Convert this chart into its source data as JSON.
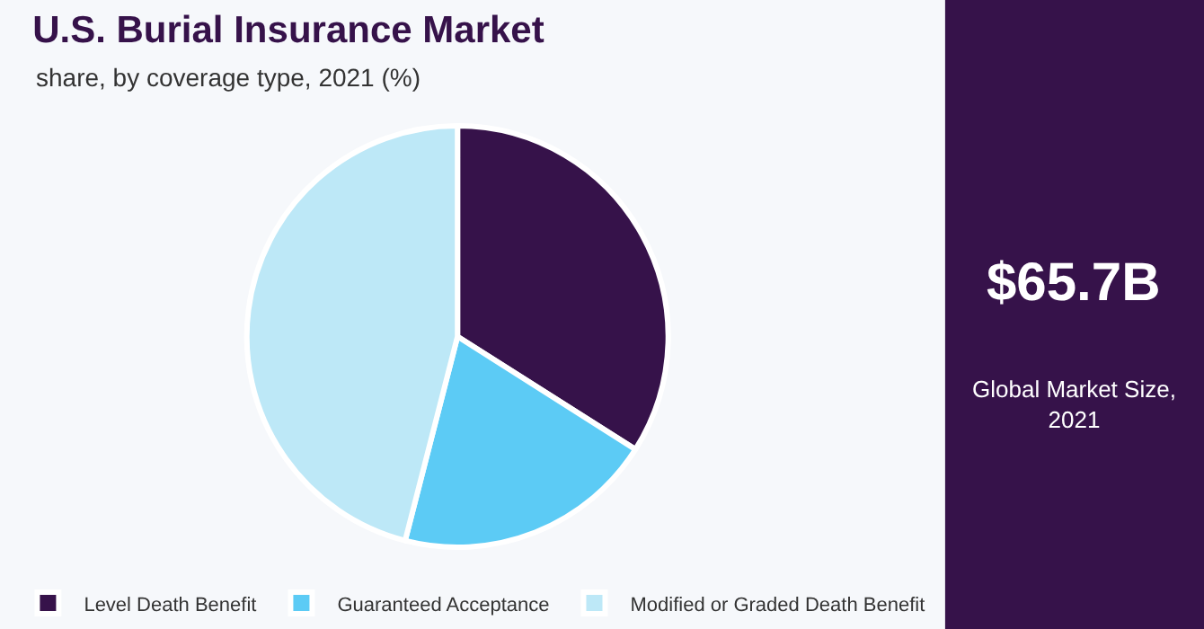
{
  "chart_data": {
    "type": "pie",
    "title": "U.S. Burial Insurance Market",
    "subtitle": "share, by coverage type, 2021 (%)",
    "categories": [
      "Level Death Benefit",
      "Guaranteed Acceptance",
      "Modified or Graded Death Benefit"
    ],
    "values": [
      34,
      20,
      46
    ],
    "colors": [
      "#36124a",
      "#5ccbf5",
      "#bde8f7"
    ],
    "legend": "bottom",
    "annotations": [
      "$65.7B",
      "Global Market Size, 2021"
    ]
  }
}
